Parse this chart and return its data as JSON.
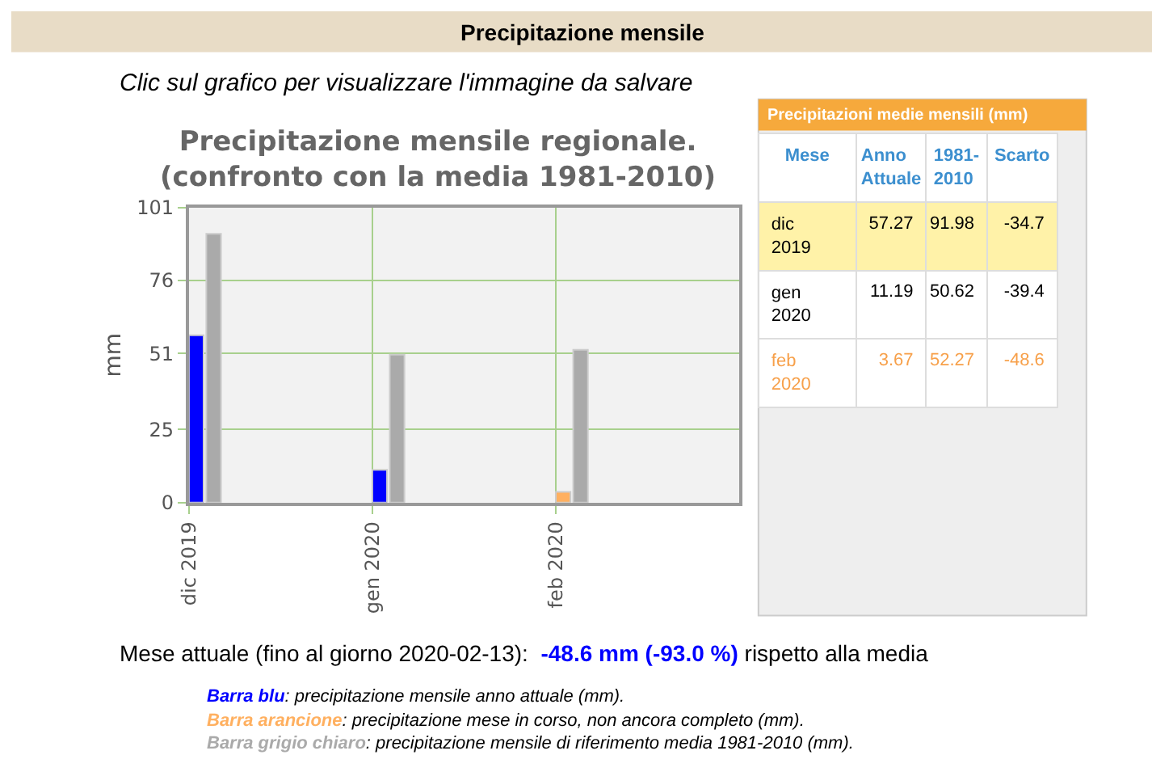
{
  "chart_data": [
    {
      "type": "bar",
      "title": "Precipitazione mensile regionale.\n(confronto con la media 1981-2010)",
      "ylabel": "mm",
      "categories": [
        "dic 2019",
        "gen 2020",
        "feb 2020"
      ],
      "series": [
        {
          "colors": [
            "#0000ff",
            "#0000ff",
            "#ffb060"
          ],
          "values": [
            57.27,
            11.19,
            3.67
          ]
        },
        {
          "color": "#aaaaaa",
          "values": [
            91.98,
            50.62,
            52.27
          ]
        }
      ],
      "ylim": [
        0,
        101
      ],
      "yticks": [
        0,
        25,
        51,
        76,
        101
      ],
      "grid": true,
      "annotations": [
        "Precipitazione mensile",
        "Clic sul grafico per visualizzare l'immagine da salvare",
        "Mese attuale (fino al giorno 2020-02-13):",
        "-48.6 mm",
        "(-93.0 %)",
        "rispetto alla media",
        "Barra blu",
        ": precipitazione mensile anno attuale (mm).",
        "Barra arancione",
        ": precipitazione mese in corso, non ancora completo (mm).",
        "Barra grigio chiaro",
        ": precipitazione mensile di riferimento media 1981-2010 (mm)."
      ]
    },
    {
      "type": "other",
      "title": "Precipitazioni medie mensili (mm)",
      "annotations": [
        "Mese",
        "Anno\nAttuale",
        "1981-\n2010",
        "Scarto",
        "dic 2019",
        "57.27",
        "91.98",
        "-34.7",
        "gen 2020",
        "11.19",
        "50.62",
        "-39.4",
        "feb 2020",
        "3.67",
        "52.27",
        "-48.6"
      ]
    }
  ]
}
